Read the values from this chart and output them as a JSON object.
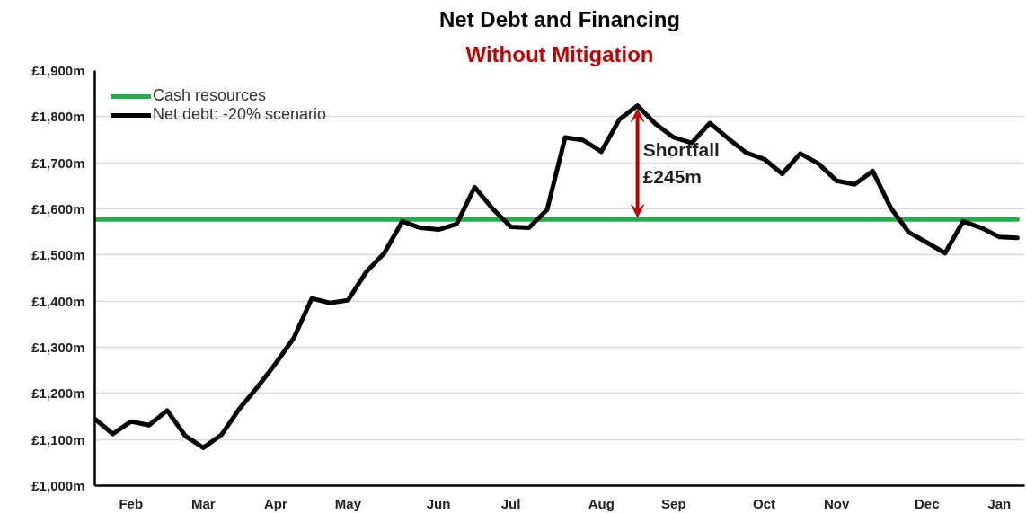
{
  "chart_data": {
    "type": "line",
    "title": "Net Debt and Financing",
    "subtitle": "Without Mitigation",
    "categories": [
      null,
      null,
      "Feb",
      null,
      null,
      null,
      "Mar",
      null,
      null,
      null,
      "Apr",
      null,
      null,
      null,
      "May",
      null,
      null,
      null,
      null,
      "Jun",
      null,
      null,
      null,
      "Jul",
      null,
      null,
      null,
      null,
      "Aug",
      null,
      null,
      null,
      "Sep",
      null,
      null,
      null,
      null,
      "Oct",
      null,
      null,
      null,
      "Nov",
      null,
      null,
      null,
      null,
      "Dec",
      null,
      null,
      null,
      "Jan",
      null
    ],
    "series": [
      {
        "name": "Cash resources",
        "color": "#1fb04a",
        "values": [
          1577,
          1577,
          1577,
          1577,
          1577,
          1577,
          1577,
          1577,
          1577,
          1577,
          1577,
          1577,
          1577,
          1577,
          1577,
          1577,
          1577,
          1577,
          1577,
          1577,
          1577,
          1577,
          1577,
          1577,
          1577,
          1577,
          1577,
          1577,
          1577,
          1577,
          1577,
          1577,
          1577,
          1577,
          1577,
          1577,
          1577,
          1577,
          1577,
          1577,
          1577,
          1577,
          1577,
          1577,
          1577,
          1577,
          1577,
          1577,
          1577,
          1577,
          1577,
          1577
        ]
      },
      {
        "name": "Net debt: -20% scenario",
        "color": "#000000",
        "values": [
          1145,
          1112,
          1139,
          1131,
          1163,
          1108,
          1082,
          1110,
          1167,
          1214,
          1265,
          1320,
          1406,
          1396,
          1402,
          1463,
          1504,
          1573,
          1559,
          1555,
          1567,
          1647,
          1600,
          1561,
          1559,
          1598,
          1755,
          1749,
          1724,
          1794,
          1824,
          1784,
          1755,
          1743,
          1786,
          1753,
          1722,
          1708,
          1676,
          1720,
          1698,
          1661,
          1653,
          1682,
          1602,
          1549,
          1527,
          1504,
          1573,
          1559,
          1539,
          1537
        ]
      }
    ],
    "ylim": [
      1000,
      1900
    ],
    "yticks": [
      {
        "value": 1000,
        "label": "£1,000m"
      },
      {
        "value": 1100,
        "label": "£1,100m"
      },
      {
        "value": 1200,
        "label": "£1,200m"
      },
      {
        "value": 1300,
        "label": "£1,300m"
      },
      {
        "value": 1400,
        "label": "£1,400m"
      },
      {
        "value": 1500,
        "label": "£1,500m"
      },
      {
        "value": 1600,
        "label": "£1,600m"
      },
      {
        "value": 1700,
        "label": "£1,700m"
      },
      {
        "value": 1800,
        "label": "£1,800m"
      },
      {
        "value": 1900,
        "label": "£1,900m"
      }
    ],
    "annotations": [
      "Shortfall\n£245m"
    ],
    "grid": "y",
    "legend": "top left",
    "marker": "none",
    "line_style": "solid"
  }
}
